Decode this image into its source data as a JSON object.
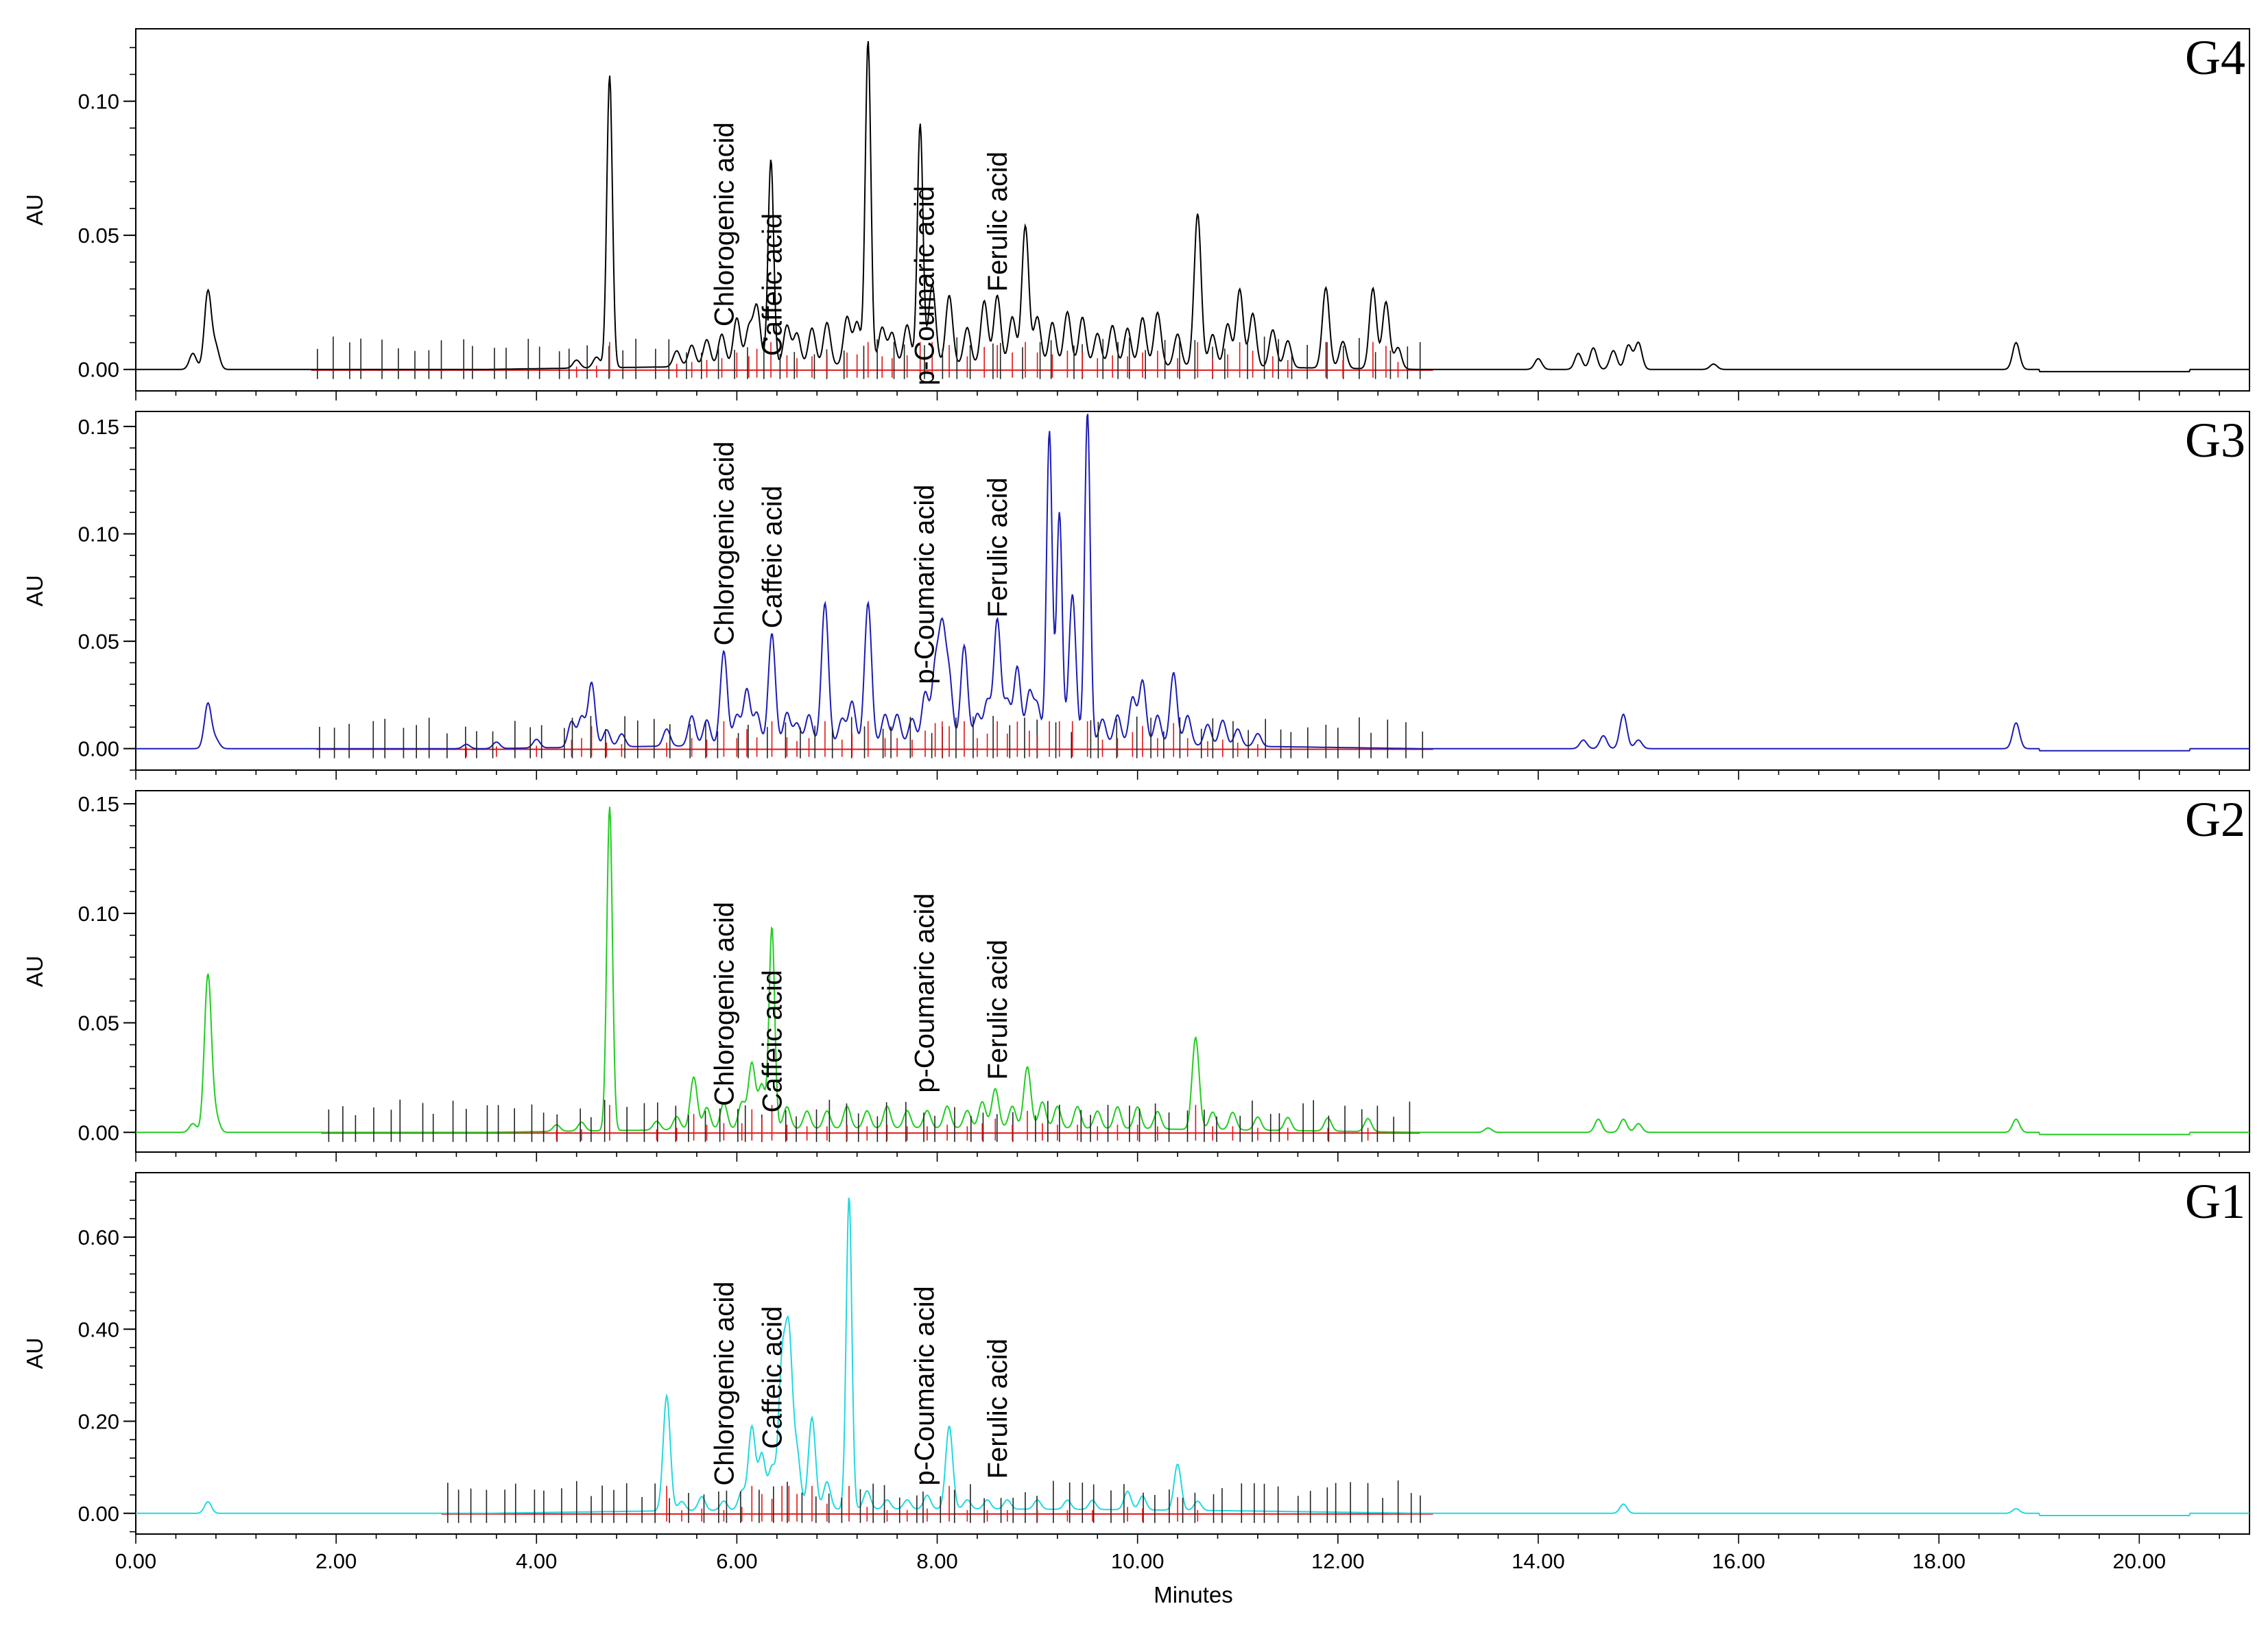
{
  "chart_data": {
    "type": "line",
    "xlabel": "Minutes",
    "xlim": [
      0,
      21.1
    ],
    "xticks": [
      "0.00",
      "2.00",
      "4.00",
      "6.00",
      "8.00",
      "10.00",
      "12.00",
      "14.00",
      "16.00",
      "18.00",
      "20.00"
    ],
    "compounds": [
      {
        "name": "Chlorogenic acid",
        "rt": 5.87
      },
      {
        "name": "Caffeic acid",
        "rt": 6.35
      },
      {
        "name": "p-Coumaric acid",
        "rt": 7.87
      },
      {
        "name": "Ferulic acid",
        "rt": 8.6
      }
    ],
    "panels": [
      {
        "name": "G4",
        "ylabel": "AU",
        "ylim": [
          -0.008,
          0.127
        ],
        "yticks": [
          "0.00",
          "0.05",
          "0.10"
        ],
        "ytick_values": [
          0,
          0.05,
          0.1
        ],
        "color": "#000000",
        "peaks": [
          [
            0.57,
            0.006
          ],
          [
            0.72,
            0.029
          ],
          [
            0.8,
            0.008
          ],
          [
            4.4,
            0.003
          ],
          [
            4.6,
            0.004
          ],
          [
            4.73,
            0.109
          ],
          [
            5.4,
            0.006
          ],
          [
            5.55,
            0.008
          ],
          [
            5.7,
            0.01
          ],
          [
            5.85,
            0.012
          ],
          [
            6.0,
            0.018
          ],
          [
            6.12,
            0.014
          ],
          [
            6.2,
            0.022
          ],
          [
            6.34,
            0.077
          ],
          [
            6.5,
            0.015
          ],
          [
            6.6,
            0.012
          ],
          [
            6.75,
            0.014
          ],
          [
            6.9,
            0.016
          ],
          [
            7.1,
            0.018
          ],
          [
            7.2,
            0.016
          ],
          [
            7.31,
            0.121
          ],
          [
            7.45,
            0.014
          ],
          [
            7.55,
            0.012
          ],
          [
            7.7,
            0.015
          ],
          [
            7.83,
            0.09
          ],
          [
            7.95,
            0.03
          ],
          [
            8.12,
            0.026
          ],
          [
            8.3,
            0.014
          ],
          [
            8.47,
            0.024
          ],
          [
            8.6,
            0.026
          ],
          [
            8.75,
            0.018
          ],
          [
            8.88,
            0.052
          ],
          [
            9.0,
            0.018
          ],
          [
            9.15,
            0.016
          ],
          [
            9.3,
            0.02
          ],
          [
            9.45,
            0.018
          ],
          [
            9.6,
            0.012
          ],
          [
            9.75,
            0.015
          ],
          [
            9.9,
            0.014
          ],
          [
            10.05,
            0.018
          ],
          [
            10.2,
            0.02
          ],
          [
            10.4,
            0.012
          ],
          [
            10.6,
            0.057
          ],
          [
            10.75,
            0.012
          ],
          [
            10.9,
            0.016
          ],
          [
            11.02,
            0.029
          ],
          [
            11.15,
            0.02
          ],
          [
            11.35,
            0.014
          ],
          [
            11.5,
            0.01
          ],
          [
            11.88,
            0.03
          ],
          [
            12.05,
            0.01
          ],
          [
            12.35,
            0.03
          ],
          [
            12.48,
            0.025
          ],
          [
            12.6,
            0.008
          ],
          [
            14.0,
            0.004
          ],
          [
            14.4,
            0.006
          ],
          [
            14.55,
            0.008
          ],
          [
            14.75,
            0.007
          ],
          [
            14.9,
            0.009
          ],
          [
            15.0,
            0.01
          ],
          [
            15.75,
            0.002
          ],
          [
            18.77,
            0.01
          ]
        ],
        "labels": [
          {
            "text": "Chlorogenic acid",
            "rt": 5.87,
            "y": 0.016
          },
          {
            "text": "Caffeic acid",
            "rt": 6.35,
            "y": 0.005
          },
          {
            "text": "p-Coumaric acid",
            "rt": 7.87,
            "y": -0.006
          },
          {
            "text": "Ferulic acid",
            "rt": 8.6,
            "y": 0.029
          }
        ]
      },
      {
        "name": "G3",
        "ylabel": "AU",
        "ylim": [
          -0.01,
          0.157
        ],
        "yticks": [
          "0.00",
          "0.05",
          "0.10",
          "0.15"
        ],
        "ytick_values": [
          0,
          0.05,
          0.1,
          0.15
        ],
        "color": "#1c1cb4",
        "peaks": [
          [
            0.72,
            0.021
          ],
          [
            0.8,
            0.004
          ],
          [
            3.3,
            0.002
          ],
          [
            3.6,
            0.003
          ],
          [
            4.0,
            0.004
          ],
          [
            4.35,
            0.012
          ],
          [
            4.45,
            0.014
          ],
          [
            4.55,
            0.03
          ],
          [
            4.7,
            0.008
          ],
          [
            4.85,
            0.006
          ],
          [
            5.3,
            0.008
          ],
          [
            5.55,
            0.014
          ],
          [
            5.7,
            0.012
          ],
          [
            5.87,
            0.044
          ],
          [
            6.0,
            0.014
          ],
          [
            6.1,
            0.026
          ],
          [
            6.2,
            0.015
          ],
          [
            6.35,
            0.052
          ],
          [
            6.5,
            0.015
          ],
          [
            6.6,
            0.01
          ],
          [
            6.72,
            0.014
          ],
          [
            6.88,
            0.066
          ],
          [
            7.05,
            0.012
          ],
          [
            7.15,
            0.02
          ],
          [
            7.31,
            0.066
          ],
          [
            7.48,
            0.014
          ],
          [
            7.6,
            0.014
          ],
          [
            7.75,
            0.012
          ],
          [
            7.88,
            0.024
          ],
          [
            7.98,
            0.034
          ],
          [
            8.05,
            0.05
          ],
          [
            8.12,
            0.03
          ],
          [
            8.27,
            0.046
          ],
          [
            8.4,
            0.014
          ],
          [
            8.5,
            0.02
          ],
          [
            8.6,
            0.058
          ],
          [
            8.7,
            0.02
          ],
          [
            8.8,
            0.036
          ],
          [
            8.92,
            0.024
          ],
          [
            9.0,
            0.018
          ],
          [
            9.12,
            0.146
          ],
          [
            9.22,
            0.108
          ],
          [
            9.35,
            0.07
          ],
          [
            9.5,
            0.155
          ],
          [
            9.65,
            0.012
          ],
          [
            9.8,
            0.014
          ],
          [
            9.95,
            0.022
          ],
          [
            10.05,
            0.03
          ],
          [
            10.2,
            0.014
          ],
          [
            10.36,
            0.034
          ],
          [
            10.5,
            0.014
          ],
          [
            10.7,
            0.01
          ],
          [
            10.85,
            0.012
          ],
          [
            11.0,
            0.008
          ],
          [
            11.2,
            0.006
          ],
          [
            14.45,
            0.004
          ],
          [
            14.65,
            0.006
          ],
          [
            14.85,
            0.016
          ],
          [
            15.0,
            0.004
          ],
          [
            18.77,
            0.012
          ]
        ],
        "labels": [
          {
            "text": "Chlorogenic acid",
            "rt": 5.87,
            "y": 0.048
          },
          {
            "text": "Caffeic acid",
            "rt": 6.35,
            "y": 0.056
          },
          {
            "text": "p-Coumaric acid",
            "rt": 7.87,
            "y": 0.03
          },
          {
            "text": "Ferulic acid",
            "rt": 8.6,
            "y": 0.061
          }
        ]
      },
      {
        "name": "G2",
        "ylabel": "AU",
        "ylim": [
          -0.009,
          0.156
        ],
        "yticks": [
          "0.00",
          "0.05",
          "0.10",
          "0.15"
        ],
        "ytick_values": [
          0,
          0.05,
          0.1,
          0.15
        ],
        "color": "#22cc22",
        "peaks": [
          [
            0.57,
            0.004
          ],
          [
            0.72,
            0.072
          ],
          [
            0.8,
            0.007
          ],
          [
            4.2,
            0.003
          ],
          [
            4.45,
            0.004
          ],
          [
            4.73,
            0.148
          ],
          [
            5.2,
            0.004
          ],
          [
            5.4,
            0.006
          ],
          [
            5.57,
            0.024
          ],
          [
            5.7,
            0.01
          ],
          [
            5.87,
            0.012
          ],
          [
            6.05,
            0.012
          ],
          [
            6.15,
            0.03
          ],
          [
            6.25,
            0.02
          ],
          [
            6.35,
            0.092
          ],
          [
            6.5,
            0.01
          ],
          [
            6.7,
            0.008
          ],
          [
            6.9,
            0.008
          ],
          [
            7.1,
            0.01
          ],
          [
            7.3,
            0.008
          ],
          [
            7.5,
            0.01
          ],
          [
            7.7,
            0.008
          ],
          [
            7.9,
            0.008
          ],
          [
            8.1,
            0.01
          ],
          [
            8.3,
            0.008
          ],
          [
            8.45,
            0.012
          ],
          [
            8.58,
            0.018
          ],
          [
            8.75,
            0.01
          ],
          [
            8.9,
            0.028
          ],
          [
            9.05,
            0.012
          ],
          [
            9.2,
            0.01
          ],
          [
            9.4,
            0.01
          ],
          [
            9.6,
            0.008
          ],
          [
            9.8,
            0.01
          ],
          [
            10.0,
            0.01
          ],
          [
            10.2,
            0.008
          ],
          [
            10.58,
            0.042
          ],
          [
            10.75,
            0.008
          ],
          [
            10.95,
            0.008
          ],
          [
            11.2,
            0.006
          ],
          [
            11.5,
            0.006
          ],
          [
            11.9,
            0.006
          ],
          [
            12.3,
            0.006
          ],
          [
            13.5,
            0.002
          ],
          [
            14.6,
            0.006
          ],
          [
            14.85,
            0.006
          ],
          [
            15.0,
            0.004
          ],
          [
            18.77,
            0.006
          ]
        ],
        "labels": [
          {
            "text": "Chlorogenic acid",
            "rt": 5.87,
            "y": 0.012
          },
          {
            "text": "Caffeic acid",
            "rt": 6.35,
            "y": 0.009
          },
          {
            "text": "p-Coumaric acid",
            "rt": 7.87,
            "y": 0.018
          },
          {
            "text": "Ferulic acid",
            "rt": 8.6,
            "y": 0.024
          }
        ]
      },
      {
        "name": "G1",
        "ylabel": "AU",
        "ylim": [
          -0.045,
          0.74
        ],
        "yticks": [
          "0.00",
          "0.20",
          "0.40",
          "0.60"
        ],
        "ytick_values": [
          0,
          0.2,
          0.4,
          0.6
        ],
        "color": "#22d8e0",
        "peaks": [
          [
            0.72,
            0.025
          ],
          [
            5.3,
            0.25
          ],
          [
            5.45,
            0.02
          ],
          [
            5.65,
            0.03
          ],
          [
            5.87,
            0.02
          ],
          [
            6.05,
            0.04
          ],
          [
            6.15,
            0.18
          ],
          [
            6.25,
            0.12
          ],
          [
            6.35,
            0.09
          ],
          [
            6.45,
            0.3
          ],
          [
            6.52,
            0.36
          ],
          [
            6.6,
            0.12
          ],
          [
            6.75,
            0.2
          ],
          [
            6.9,
            0.06
          ],
          [
            7.12,
            0.68
          ],
          [
            7.3,
            0.04
          ],
          [
            7.5,
            0.02
          ],
          [
            7.7,
            0.02
          ],
          [
            7.9,
            0.03
          ],
          [
            8.12,
            0.18
          ],
          [
            8.3,
            0.02
          ],
          [
            8.5,
            0.02
          ],
          [
            8.7,
            0.02
          ],
          [
            9.0,
            0.02
          ],
          [
            9.3,
            0.02
          ],
          [
            9.55,
            0.02
          ],
          [
            9.9,
            0.04
          ],
          [
            10.05,
            0.03
          ],
          [
            10.4,
            0.1
          ],
          [
            10.6,
            0.02
          ],
          [
            14.85,
            0.02
          ],
          [
            18.77,
            0.01
          ]
        ],
        "labels": [
          {
            "text": "Chlorogenic acid",
            "rt": 5.87,
            "y": 0.06
          },
          {
            "text": "Caffeic acid",
            "rt": 6.35,
            "y": 0.14
          },
          {
            "text": "p-Coumaric acid",
            "rt": 7.87,
            "y": 0.06
          },
          {
            "text": "Ferulic acid",
            "rt": 8.6,
            "y": 0.075
          }
        ]
      }
    ]
  }
}
